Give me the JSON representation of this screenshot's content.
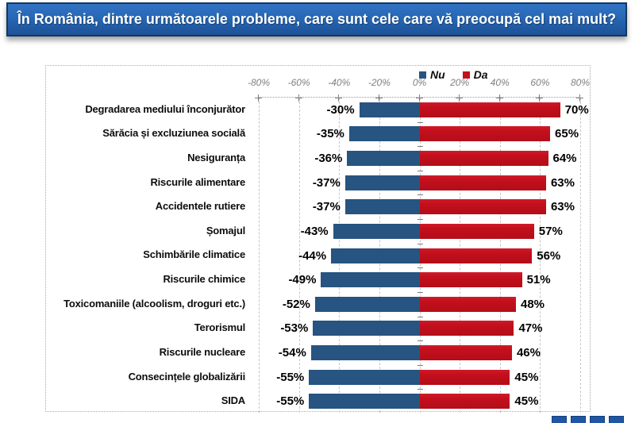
{
  "title": "În România, dintre următoarele probleme, care sunt cele care vă preocupă cel mai mult?",
  "colors": {
    "banner_blue": "#2767B4",
    "banner_border": "#16375F",
    "bar_blue": "#275480",
    "bar_red": "#C3101C",
    "axis_label_gray": "#7F7F7F",
    "footer_square_blue": "#2156A5"
  },
  "chart_data": {
    "type": "bar",
    "orientation": "horizontal-diverging",
    "title": "",
    "xlabel": "",
    "ylabel": "",
    "xlim": [
      -80,
      80
    ],
    "x_ticks": [
      "-80%",
      "-60%",
      "-40%",
      "-20%",
      "0%",
      "20%",
      "40%",
      "60%",
      "80%"
    ],
    "grid": "dashed-vertical",
    "legend_position": "top-center",
    "categories": [
      "Degradarea mediului înconjurător",
      "Sărăcia și excluziunea socială",
      "Nesiguranța",
      "Riscurile alimentare",
      "Accidentele rutiere",
      "Șomajul",
      "Schimbările climatice",
      "Riscurile chimice",
      "Toxicomaniile (alcoolism, droguri etc.)",
      "Terorismul",
      "Riscurile nucleare",
      "Consecințele globalizării",
      "SIDA"
    ],
    "series": [
      {
        "name": "Nu",
        "color": "#275480",
        "values": [
          -30,
          -35,
          -36,
          -37,
          -37,
          -43,
          -44,
          -49,
          -52,
          -53,
          -54,
          -55,
          -55
        ],
        "labels": [
          "-30%",
          "-35%",
          "-36%",
          "-37%",
          "-37%",
          "-43%",
          "-44%",
          "-49%",
          "-52%",
          "-53%",
          "-54%",
          "-55%",
          "-55%"
        ]
      },
      {
        "name": "Da",
        "color": "#C3101C",
        "values": [
          70,
          65,
          64,
          63,
          63,
          57,
          56,
          51,
          48,
          47,
          46,
          45,
          45
        ],
        "labels": [
          "70%",
          "65%",
          "64%",
          "63%",
          "63%",
          "57%",
          "56%",
          "51%",
          "48%",
          "47%",
          "46%",
          "45%",
          "45%"
        ]
      }
    ]
  },
  "footer": {
    "squares": [
      "",
      "",
      "",
      ""
    ]
  }
}
